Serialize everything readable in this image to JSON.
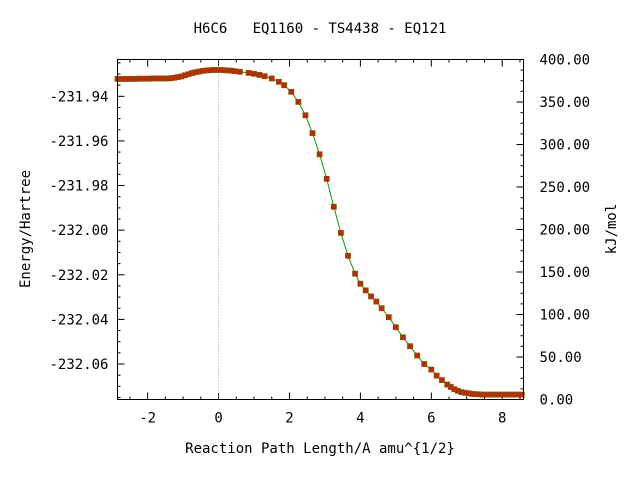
{
  "chart_data": {
    "type": "line",
    "title": "H6C6   EQ1160 - TS4438 - EQ121",
    "xlabel": "Reaction Path Length/A amu^{1/2}",
    "ylabel": "Energy/Hartree",
    "y2label": "kJ/mol",
    "xlim": [
      -2.85,
      8.6
    ],
    "ylim": [
      -232.0759,
      -231.9235
    ],
    "y2lim": [
      0,
      400
    ],
    "xticks": [
      "-2",
      "0",
      "2",
      "4",
      "6",
      "8"
    ],
    "yticks": [
      "-231.94",
      "-231.96",
      "-231.98",
      "-232.00",
      "-232.02",
      "-232.04",
      "-232.06"
    ],
    "y2ticks": [
      "0.00",
      "50.00",
      "100.00",
      "150.00",
      "200.00",
      "250.00",
      "300.00",
      "350.00",
      "400.00"
    ],
    "grid": false,
    "legend": "none",
    "colors": {
      "line": "#00a000",
      "marker": "#cc2200",
      "zero_line": "#a0a0a0"
    },
    "series": [
      {
        "x": [
          -2.85,
          -2.75,
          -2.65,
          -2.55,
          -2.45,
          -2.35,
          -2.25,
          -2.15,
          -2.05,
          -1.95,
          -1.85,
          -1.75,
          -1.65,
          -1.55,
          -1.45,
          -1.35,
          -1.25,
          -1.15,
          -1.05,
          -0.95,
          -0.85,
          -0.75,
          -0.65,
          -0.55,
          -0.45,
          -0.35,
          -0.25,
          -0.15,
          -0.05,
          0.05,
          0.15,
          0.25,
          0.35,
          0.45,
          0.6,
          0.85,
          1.0,
          1.15,
          1.3,
          1.5,
          1.7,
          1.85,
          2.05,
          2.25,
          2.45,
          2.65,
          2.85,
          3.05,
          3.25,
          3.45,
          3.65,
          3.85,
          4.0,
          4.15,
          4.3,
          4.45,
          4.6,
          4.8,
          5.0,
          5.2,
          5.4,
          5.6,
          5.8,
          6.0,
          6.15,
          6.3,
          6.45,
          6.55,
          6.65,
          6.75,
          6.85,
          6.95,
          7.05,
          7.15,
          7.25,
          7.35,
          7.45,
          7.55,
          7.65,
          7.75,
          7.85,
          7.95,
          8.05,
          8.15,
          8.25,
          8.35,
          8.45,
          8.55
        ],
        "y": [
          -231.9322,
          -231.9322,
          -231.9322,
          -231.9322,
          -231.9322,
          -231.9322,
          -231.9321,
          -231.9321,
          -231.9321,
          -231.9321,
          -231.932,
          -231.932,
          -231.932,
          -231.932,
          -231.932,
          -231.9319,
          -231.9317,
          -231.9314,
          -231.9311,
          -231.9306,
          -231.9301,
          -231.9296,
          -231.9292,
          -231.9289,
          -231.9286,
          -231.9284,
          -231.9283,
          -231.9282,
          -231.9282,
          -231.9282,
          -231.9283,
          -231.9284,
          -231.9285,
          -231.9287,
          -231.929,
          -231.9295,
          -231.9299,
          -231.9304,
          -231.931,
          -231.932,
          -231.9335,
          -231.935,
          -231.938,
          -231.9425,
          -231.9485,
          -231.9565,
          -231.966,
          -231.977,
          -231.9895,
          -232.0012,
          -232.0115,
          -232.0195,
          -232.024,
          -232.027,
          -232.0297,
          -232.032,
          -232.035,
          -232.039,
          -232.0435,
          -232.048,
          -232.052,
          -232.0562,
          -232.06,
          -232.0625,
          -232.0652,
          -232.0672,
          -232.0692,
          -232.0703,
          -232.0713,
          -232.072,
          -232.0726,
          -232.0729,
          -232.0731,
          -232.0734,
          -232.0735,
          -232.0736,
          -232.0737,
          -232.0737,
          -232.0737,
          -232.0737,
          -232.0737,
          -232.0737,
          -232.0737,
          -232.0737,
          -232.0737,
          -232.0737,
          -232.0737,
          -232.0737
        ]
      }
    ]
  }
}
